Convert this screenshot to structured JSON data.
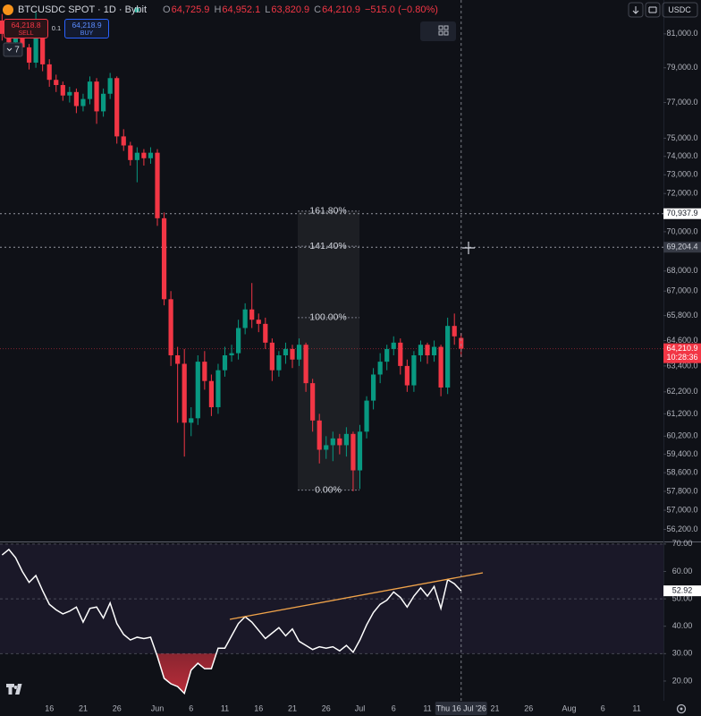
{
  "chart_data": [
    {
      "type": "candlestick",
      "log_scale": true,
      "up_color": "#089981",
      "down_color": "#f23645",
      "categories": [
        null,
        null,
        null,
        null,
        null,
        null,
        null,
        "16",
        null,
        null,
        null,
        null,
        "21",
        null,
        null,
        null,
        null,
        "26",
        null,
        null,
        null,
        null,
        null,
        "Jun",
        null,
        null,
        null,
        null,
        "6",
        null,
        null,
        null,
        null,
        "11",
        null,
        null,
        null,
        null,
        "16",
        null,
        null,
        null,
        null,
        "21",
        null,
        null,
        null,
        null,
        "26",
        null,
        null,
        null,
        null,
        "Jul",
        null,
        null,
        null,
        null,
        "6",
        null,
        null,
        null,
        null,
        "11",
        null,
        null,
        null,
        null,
        "Thu 16 Jul '26",
        null,
        null,
        null,
        null,
        "21",
        null,
        null,
        null,
        null,
        "26",
        null,
        null,
        null,
        null,
        null,
        "Aug",
        null,
        null,
        null,
        null,
        "6",
        null,
        null,
        null,
        null,
        "11",
        null,
        null,
        null
      ],
      "open": [
        81800,
        81000,
        80500,
        81200,
        80200,
        79300,
        81500,
        79200,
        78300,
        78000,
        77400,
        77600,
        76800,
        77200,
        78200,
        76500,
        77500,
        78400,
        75100,
        74600,
        73800,
        74200,
        73900,
        74200,
        70700,
        66600,
        63900,
        63500,
        60800,
        61000,
        63600,
        62700,
        61500,
        63200,
        63900,
        64000,
        65200,
        66100,
        65600,
        65400,
        64500,
        63200,
        63900,
        64200,
        63700,
        64400,
        62600,
        60900,
        59600,
        59800,
        60100,
        59800,
        60300,
        58700,
        60400,
        61800,
        63000,
        63600,
        64200,
        64500,
        63400,
        62500,
        63900,
        64400,
        63900,
        64300,
        62400,
        65300,
        64725.9,
        null,
        null,
        null,
        null,
        null,
        null,
        null,
        null,
        null,
        null,
        null,
        null,
        null,
        null,
        null,
        null,
        null,
        null,
        null,
        null,
        null,
        null,
        null,
        null,
        null,
        null,
        null,
        null,
        null
      ],
      "high": [
        82200,
        81400,
        81600,
        81500,
        80400,
        82300,
        81700,
        79500,
        78600,
        78200,
        77900,
        77800,
        77500,
        78500,
        78400,
        77800,
        78700,
        78500,
        75500,
        74800,
        74500,
        74400,
        74500,
        74400,
        71000,
        67000,
        64300,
        64200,
        61500,
        63900,
        64100,
        63000,
        63500,
        64300,
        64400,
        65600,
        66400,
        67400,
        65900,
        65700,
        64700,
        64100,
        64500,
        64400,
        64700,
        64500,
        62800,
        61200,
        60200,
        60400,
        60300,
        60600,
        60400,
        60700,
        62000,
        63300,
        64000,
        64400,
        64800,
        64700,
        63700,
        64100,
        64600,
        64500,
        64600,
        64400,
        65700,
        65900,
        64952.1,
        null,
        null,
        null,
        null,
        null,
        null,
        null,
        null,
        null,
        null,
        null,
        null,
        null,
        null,
        null,
        null,
        null,
        null,
        null,
        null,
        null,
        null,
        null,
        null,
        null,
        null,
        null,
        null,
        null
      ],
      "low": [
        80600,
        80000,
        80200,
        79800,
        78900,
        79000,
        78800,
        77900,
        77600,
        77100,
        77000,
        76400,
        76500,
        76900,
        75800,
        76200,
        77200,
        74700,
        74300,
        73500,
        72600,
        73500,
        73600,
        70300,
        66300,
        63400,
        60800,
        59300,
        60200,
        60700,
        62300,
        61100,
        61200,
        62900,
        63600,
        63700,
        64900,
        65200,
        65000,
        64200,
        62700,
        62900,
        63500,
        63300,
        63400,
        62200,
        60400,
        59000,
        59200,
        59100,
        59400,
        59300,
        57800,
        57900,
        60100,
        61400,
        62600,
        63200,
        63900,
        63000,
        62200,
        62200,
        63600,
        63500,
        63600,
        62000,
        62100,
        64400,
        63820.9,
        null,
        null,
        null,
        null,
        null,
        null,
        null,
        null,
        null,
        null,
        null,
        null,
        null,
        null,
        null,
        null,
        null,
        null,
        null,
        null,
        null,
        null,
        null,
        null,
        null,
        null,
        null,
        null,
        null
      ],
      "close": [
        81000,
        80500,
        81200,
        80200,
        79300,
        81500,
        79200,
        78300,
        78000,
        77400,
        77600,
        76800,
        77200,
        78200,
        76500,
        77500,
        78400,
        75100,
        74600,
        73800,
        74200,
        73900,
        74200,
        70700,
        66600,
        63900,
        63500,
        60800,
        61000,
        63600,
        62700,
        61500,
        63200,
        63900,
        64000,
        65200,
        66100,
        65600,
        65400,
        64500,
        63200,
        63900,
        64200,
        63700,
        64400,
        62600,
        60900,
        59600,
        59800,
        60100,
        59800,
        60300,
        58700,
        60400,
        61800,
        63000,
        63600,
        64200,
        64500,
        63400,
        62500,
        63900,
        64400,
        63900,
        64300,
        62400,
        65300,
        64800,
        64210.9,
        null,
        null,
        null,
        null,
        null,
        null,
        null,
        null,
        null,
        null,
        null,
        null,
        null,
        null,
        null,
        null,
        null,
        null,
        null,
        null,
        null,
        null,
        null,
        null,
        null,
        null,
        null,
        null,
        null
      ],
      "last_price_label": "64,210.9",
      "countdown": "10:28:36",
      "ylim": [
        55700,
        83050
      ],
      "yticks": [
        {
          "value": 81000,
          "label": "81,000.0"
        },
        {
          "value": 79000,
          "label": "79,000.0"
        },
        {
          "value": 77000,
          "label": "77,000.0"
        },
        {
          "value": 75000,
          "label": "75,000.0"
        },
        {
          "value": 74000,
          "label": "74,000.0"
        },
        {
          "value": 73000,
          "label": "73,000.0"
        },
        {
          "value": 72000,
          "label": "72,000.0"
        },
        {
          "value": 70000,
          "label": "70,000.0"
        },
        {
          "value": 68000,
          "label": "68,000.0"
        },
        {
          "value": 67000,
          "label": "67,000.0"
        },
        {
          "value": 65800,
          "label": "65,800.0"
        },
        {
          "value": 64600,
          "label": "64,600.0"
        },
        {
          "value": 63400,
          "label": "63,400.0"
        },
        {
          "value": 62200,
          "label": "62,200.0"
        },
        {
          "value": 61200,
          "label": "61,200.0"
        },
        {
          "value": 60200,
          "label": "60,200.0"
        },
        {
          "value": 59400,
          "label": "59,400.0"
        },
        {
          "value": 58600,
          "label": "58,600.0"
        },
        {
          "value": 57800,
          "label": "57,800.0"
        },
        {
          "value": 57000,
          "label": "57,000.0"
        },
        {
          "value": 56200,
          "label": "56,200.0"
        }
      ],
      "hlines": [
        {
          "value": 70937.9,
          "label": "70,937.9"
        },
        {
          "value": 69204.4,
          "label": "69,204.4"
        }
      ],
      "fib": {
        "low": 57850,
        "high": 65700,
        "levels": [
          {
            "value": 161.8,
            "label": "161.80%"
          },
          {
            "value": 141.4,
            "label": "141.40%"
          },
          {
            "value": 100,
            "label": "100.00%"
          },
          {
            "value": 0,
            "label": "0.00%"
          }
        ]
      }
    },
    {
      "type": "line",
      "color": "#ffffff",
      "values": [
        66,
        68,
        65,
        60,
        56,
        58.5,
        53,
        48,
        46,
        44.5,
        45.5,
        47,
        41.5,
        46.5,
        47,
        43,
        48.5,
        41,
        37,
        35,
        36,
        35.5,
        36,
        29,
        21,
        19,
        18,
        15.5,
        24,
        26.5,
        24.5,
        24.5,
        32,
        32,
        36.5,
        41,
        43.5,
        41.5,
        38.5,
        35.5,
        37.5,
        39.5,
        36.5,
        39,
        34.5,
        33,
        31.5,
        32.5,
        32,
        32.5,
        31,
        33,
        30.5,
        35,
        40.5,
        45,
        48,
        49.5,
        52.5,
        50.5,
        47,
        51,
        54,
        51,
        54.5,
        46.5,
        57,
        55.5,
        52.92,
        null,
        null,
        null,
        null,
        null,
        null,
        null,
        null,
        null,
        null,
        null,
        null,
        null,
        null,
        null,
        null,
        null,
        null,
        null,
        null,
        null,
        null,
        null,
        null,
        null,
        null,
        null,
        null,
        null
      ],
      "ylim": [
        12.8,
        70.6
      ],
      "yticks": [
        {
          "value": 70,
          "label": "70.00"
        },
        {
          "value": 60,
          "label": "60.00"
        },
        {
          "value": 50,
          "label": "50.00"
        },
        {
          "value": 40,
          "label": "40.00"
        },
        {
          "value": 30,
          "label": "30.00"
        },
        {
          "value": 20,
          "label": "20.00"
        }
      ],
      "band": [
        30,
        70
      ],
      "midline": 50,
      "oversold_color": "#f23645"
    }
  ],
  "ui": {
    "legend": {
      "symbol": "BTCUSDC SPOT · 1D · Bybit",
      "o": "O",
      "ov": "64,725.9",
      "h": "H",
      "hv": "64,952.1",
      "l": "L",
      "lv": "63,820.9",
      "c": "C",
      "cv": "64,210.9",
      "change": "−515.0 (−0.80%)"
    },
    "trade": {
      "sell_price": "64,218.8",
      "sell": "SELL",
      "qty": "0.1",
      "buy_price": "64,218.9",
      "buy": "BUY"
    },
    "interval_count": "7",
    "currency": "USDC"
  }
}
